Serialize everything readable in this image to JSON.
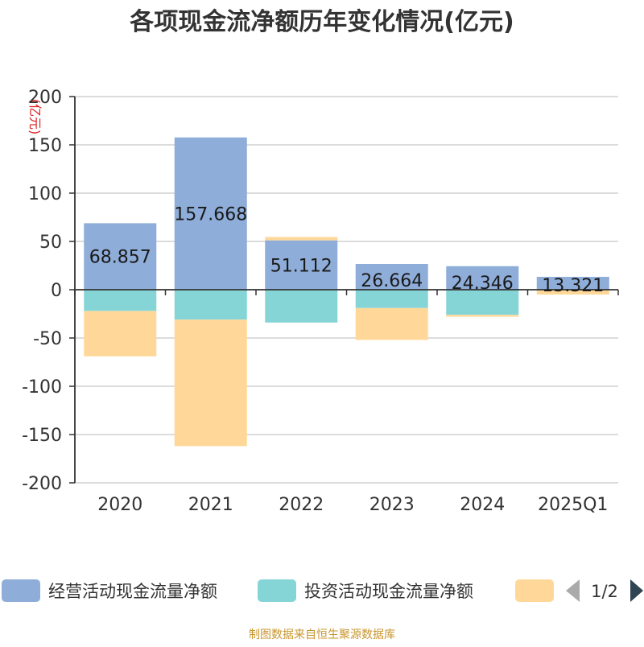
{
  "chart_data": {
    "type": "bar",
    "stacked": true,
    "title": "各项现金流净额历年变化情况(亿元)",
    "ylabel": "(亿元)",
    "xlabel": "",
    "ylim": [
      -200,
      200
    ],
    "yticks": [
      200,
      150,
      100,
      50,
      0,
      -50,
      -100,
      -150,
      -200
    ],
    "categories": [
      "2020",
      "2021",
      "2022",
      "2023",
      "2024",
      "2025Q1"
    ],
    "series": [
      {
        "name": "经营活动现金流量净额",
        "color": "#8eadd9",
        "values": [
          68.857,
          157.668,
          51.112,
          26.664,
          24.346,
          13.321
        ],
        "labels": [
          "68.857",
          "157.668",
          "51.112",
          "26.664",
          "24.346",
          "13.321"
        ]
      },
      {
        "name": "投资活动现金流量净额",
        "color": "#85d5d7",
        "values": [
          -22,
          -31,
          -34,
          -19,
          -26,
          0
        ]
      },
      {
        "name": "",
        "color": "#ffd899",
        "values": [
          -47,
          -131,
          3.5,
          -33,
          -2,
          -5
        ]
      }
    ],
    "legend": {
      "placement": "bottom",
      "page": "1/2"
    }
  },
  "source": "制图数据来自恒生聚源数据库"
}
